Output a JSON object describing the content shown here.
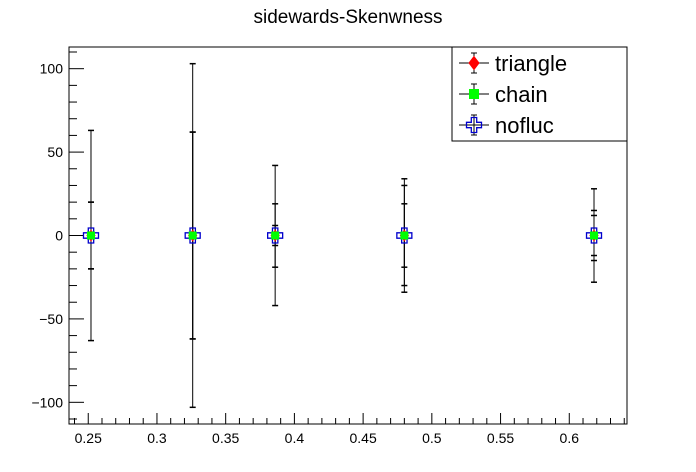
{
  "chart_data": {
    "type": "scatter",
    "title": "sidewards-Skenwness",
    "xlabel": "",
    "ylabel": "",
    "xlim": [
      0.236,
      0.642
    ],
    "ylim": [
      -113,
      113
    ],
    "x_ticks": [
      {
        "value": 0.25,
        "label": "0.25"
      },
      {
        "value": 0.3,
        "label": "0.3"
      },
      {
        "value": 0.35,
        "label": "0.35"
      },
      {
        "value": 0.4,
        "label": "0.4"
      },
      {
        "value": 0.45,
        "label": "0.45"
      },
      {
        "value": 0.5,
        "label": "0.5"
      },
      {
        "value": 0.55,
        "label": "0.55"
      },
      {
        "value": 0.6,
        "label": "0.6"
      }
    ],
    "y_ticks": [
      {
        "value": 100,
        "label": "100"
      },
      {
        "value": 50,
        "label": "50"
      },
      {
        "value": 0,
        "label": "0"
      },
      {
        "value": -50,
        "label": "−50"
      },
      {
        "value": -100,
        "label": "−100"
      }
    ],
    "grid": false,
    "legend_position": "top-right",
    "series": [
      {
        "name": "triangle",
        "marker": "diamond",
        "color": "#ff0000",
        "x": [
          0.252,
          0.326,
          0.386,
          0.48,
          0.618
        ],
        "y": [
          0,
          0,
          0,
          0,
          0
        ],
        "yerr": [
          20,
          62,
          19,
          19,
          15
        ]
      },
      {
        "name": "chain",
        "marker": "square",
        "color": "#00ff00",
        "x": [
          0.252,
          0.326,
          0.386,
          0.48,
          0.618
        ],
        "y": [
          0,
          0,
          0,
          0,
          0
        ],
        "yerr": [
          20,
          62,
          6,
          30,
          12
        ]
      },
      {
        "name": "nofluc",
        "marker": "open-cross",
        "color": "#0000cc",
        "x": [
          0.252,
          0.326,
          0.386,
          0.48,
          0.618
        ],
        "y": [
          0,
          0,
          0,
          0,
          0
        ],
        "yerr": [
          63,
          103,
          42,
          34,
          28
        ]
      }
    ]
  }
}
